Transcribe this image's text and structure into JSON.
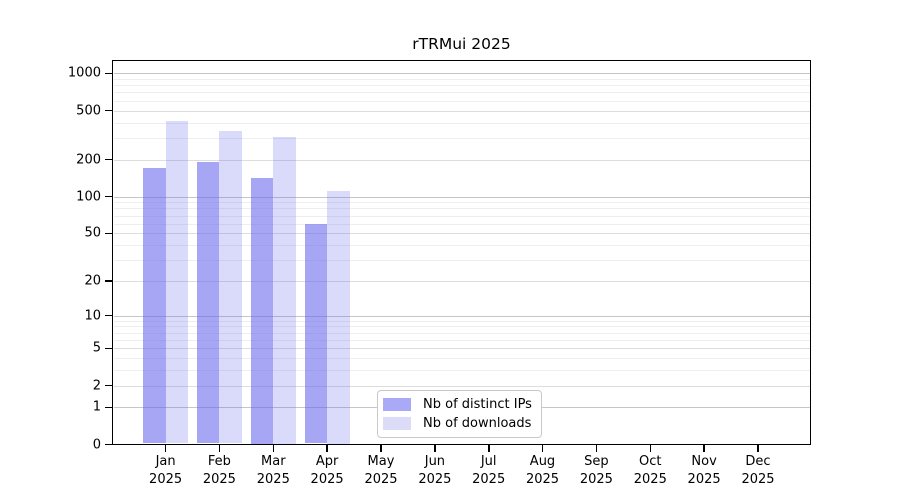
{
  "title": "rTRMui 2025",
  "chart_data": {
    "type": "bar",
    "title": "rTRMui 2025",
    "year": "2025",
    "categories": [
      "Jan",
      "Feb",
      "Mar",
      "Apr",
      "May",
      "Jun",
      "Jul",
      "Aug",
      "Sep",
      "Oct",
      "Nov",
      "Dec"
    ],
    "series": [
      {
        "name": "Nb of distinct IPs",
        "color": "#6666ee",
        "alpha": 0.58,
        "legend_color": "#a9a9f7",
        "values": [
          172,
          190,
          143,
          60,
          null,
          null,
          null,
          null,
          null,
          null,
          null,
          null
        ]
      },
      {
        "name": "Nb of downloads",
        "color": "#6666ee",
        "alpha": 0.24,
        "legend_color": "#dcdcf8",
        "values": [
          413,
          340,
          308,
          111,
          null,
          null,
          null,
          null,
          null,
          null,
          null,
          null
        ]
      }
    ],
    "yticks": [
      0,
      1,
      2,
      5,
      10,
      20,
      50,
      100,
      200,
      500,
      1000
    ],
    "ylim": [
      0,
      1000
    ],
    "xlabel": "",
    "ylabel": "",
    "scale": "log1p",
    "grid": true,
    "legend_position": "lower-center-inside",
    "grid_color_power10": "#c6c6c6",
    "grid_color_labeled": "#dddddd",
    "grid_color_minor": "#eeeeee"
  }
}
